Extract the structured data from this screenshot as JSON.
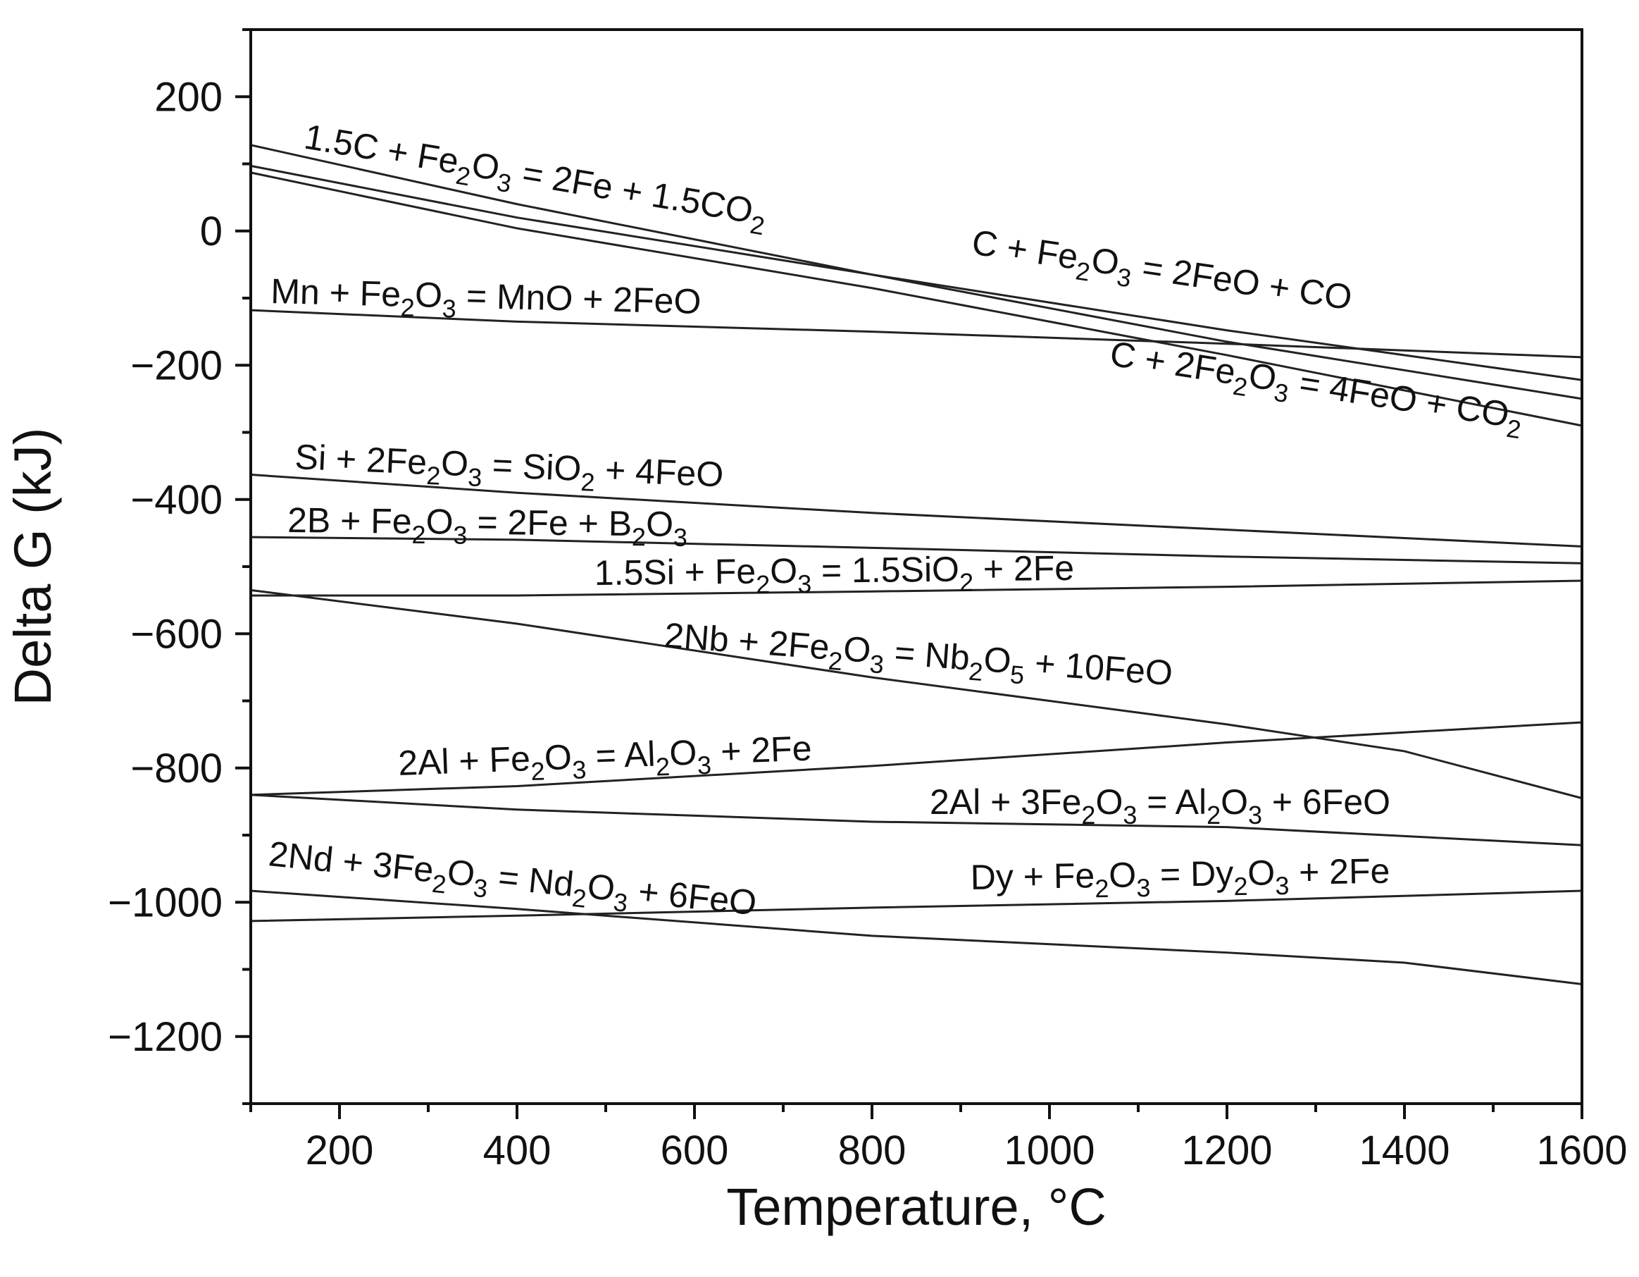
{
  "chart_data": {
    "type": "line",
    "xlabel": "Temperature, °C",
    "ylabel": "Delta G (kJ)",
    "xlim": [
      100,
      1600
    ],
    "ylim": [
      -1300,
      300
    ],
    "xticks": [
      200,
      400,
      600,
      800,
      1000,
      1200,
      1400,
      1600
    ],
    "yticks": [
      200,
      0,
      -200,
      -400,
      -600,
      -800,
      -1000,
      -1200
    ],
    "xtick_labels": [
      "200",
      "400",
      "600",
      "800",
      "1000",
      "1200",
      "1400",
      "1600"
    ],
    "ytick_labels": [
      "200",
      "0",
      "−200",
      "−400",
      "−600",
      "−800",
      "−1000",
      "−1200"
    ],
    "grid": false,
    "legend": "none (reactions labeled inline)",
    "line_color": "#222222",
    "series": [
      {
        "name": "1.5C + Fe2O3 = 2Fe + 1.5CO2",
        "x": [
          100,
          400,
          800,
          1200,
          1600
        ],
        "y": [
          128,
          40,
          -65,
          -165,
          -250
        ]
      },
      {
        "name": "C + Fe2O3 = 2FeO + CO",
        "x": [
          100,
          400,
          800,
          1200,
          1600
        ],
        "y": [
          97,
          20,
          -65,
          -148,
          -222
        ]
      },
      {
        "name": "C + 2Fe2O3 = 4FeO + CO2",
        "x": [
          100,
          400,
          800,
          1200,
          1600
        ],
        "y": [
          87,
          4,
          -85,
          -185,
          -290
        ]
      },
      {
        "name": "Mn + Fe2O3 = MnO + 2FeO",
        "x": [
          100,
          400,
          800,
          1200,
          1600
        ],
        "y": [
          -118,
          -135,
          -150,
          -168,
          -188
        ]
      },
      {
        "name": "Si + 2Fe2O3 = SiO2 + 4FeO",
        "x": [
          100,
          400,
          800,
          1200,
          1600
        ],
        "y": [
          -363,
          -390,
          -420,
          -445,
          -470
        ]
      },
      {
        "name": "2B + Fe2O3 = 2Fe + B2O3",
        "x": [
          100,
          400,
          800,
          1200,
          1600
        ],
        "y": [
          -456,
          -460,
          -472,
          -485,
          -495
        ]
      },
      {
        "name": "1.5Si + Fe2O3 = 1.5SiO2 + 2Fe",
        "x": [
          100,
          400,
          800,
          1200,
          1600
        ],
        "y": [
          -543,
          -543,
          -537,
          -530,
          -521
        ]
      },
      {
        "name": "2Nb + 2Fe2O3 = Nb2O5 + 10FeO",
        "x": [
          100,
          400,
          800,
          1200,
          1400,
          1600
        ],
        "y": [
          -535,
          -585,
          -665,
          -735,
          -775,
          -845
        ]
      },
      {
        "name": "2Al + Fe2O3 = Al2O3 + 2Fe",
        "x": [
          100,
          400,
          800,
          1200,
          1600
        ],
        "y": [
          -840,
          -827,
          -797,
          -762,
          -732
        ]
      },
      {
        "name": "2Al + 3Fe2O3 = Al2O3 + 6FeO",
        "x": [
          100,
          400,
          800,
          1200,
          1600
        ],
        "y": [
          -840,
          -862,
          -880,
          -888,
          -915
        ]
      },
      {
        "name": "2Nd + 3Fe2O3 = Nd2O3 + 6FeO",
        "x": [
          100,
          400,
          800,
          1200,
          1400,
          1600
        ],
        "y": [
          -983,
          -1010,
          -1050,
          -1075,
          -1090,
          -1122
        ]
      },
      {
        "name": "Dy + Fe2O3 = Dy2O3 + 2Fe",
        "x": [
          100,
          400,
          800,
          1200,
          1600
        ],
        "y": [
          -1028,
          -1020,
          -1008,
          -998,
          -983
        ]
      }
    ],
    "annotations": [
      {
        "text": "1.5C + Fe2O3 = 2Fe + 1.5CO2",
        "parts": [
          [
            "1.5C + Fe",
            ""
          ],
          [
            "2",
            "sub"
          ],
          [
            "O",
            ""
          ],
          [
            "3",
            "sub"
          ],
          [
            " = 2Fe + 1.5CO",
            ""
          ],
          [
            "2",
            "sub"
          ]
        ]
      },
      {
        "text": "C + Fe2O3 = 2FeO + CO",
        "parts": [
          [
            "C + Fe",
            ""
          ],
          [
            "2",
            "sub"
          ],
          [
            "O",
            ""
          ],
          [
            "3",
            "sub"
          ],
          [
            " = 2FeO + CO",
            ""
          ]
        ]
      },
      {
        "text": "Mn + Fe2O3 = MnO + 2FeO",
        "parts": [
          [
            "Mn + Fe",
            ""
          ],
          [
            "2",
            "sub"
          ],
          [
            "O",
            ""
          ],
          [
            "3",
            "sub"
          ],
          [
            " = MnO + 2FeO",
            ""
          ]
        ]
      },
      {
        "text": "C + 2Fe2O3 = 4FeO + CO2",
        "parts": [
          [
            "C + 2Fe",
            ""
          ],
          [
            "2",
            "sub"
          ],
          [
            "O",
            ""
          ],
          [
            "3",
            "sub"
          ],
          [
            " = 4FeO + CO",
            ""
          ],
          [
            "2",
            "sub"
          ]
        ]
      },
      {
        "text": "Si + 2Fe2O3 = SiO2 + 4FeO",
        "parts": [
          [
            "Si + 2Fe",
            ""
          ],
          [
            "2",
            "sub"
          ],
          [
            "O",
            ""
          ],
          [
            "3",
            "sub"
          ],
          [
            " = SiO",
            ""
          ],
          [
            "2",
            "sub"
          ],
          [
            " + 4FeO",
            ""
          ]
        ]
      },
      {
        "text": "2B + Fe2O3 = 2Fe + B2O3",
        "parts": [
          [
            "2B + Fe",
            ""
          ],
          [
            "2",
            "sub"
          ],
          [
            "O",
            ""
          ],
          [
            "3",
            "sub"
          ],
          [
            " = 2Fe + B",
            ""
          ],
          [
            "2",
            "sub"
          ],
          [
            "O",
            ""
          ],
          [
            "3",
            "sub"
          ]
        ]
      },
      {
        "text": "1.5Si + Fe2O3 = 1.5SiO2 + 2Fe",
        "parts": [
          [
            "1.5Si + Fe",
            ""
          ],
          [
            "2",
            "sub"
          ],
          [
            "O",
            ""
          ],
          [
            "3",
            "sub"
          ],
          [
            " = 1.5SiO",
            ""
          ],
          [
            "2",
            "sub"
          ],
          [
            " + 2Fe",
            ""
          ]
        ]
      },
      {
        "text": "2Nb + 2Fe2O3 = Nb2O5 + 10FeO",
        "parts": [
          [
            "2Nb + 2Fe",
            ""
          ],
          [
            "2",
            "sub"
          ],
          [
            "O",
            ""
          ],
          [
            "3",
            "sub"
          ],
          [
            " = Nb",
            ""
          ],
          [
            "2",
            "sub"
          ],
          [
            "O",
            ""
          ],
          [
            "5",
            "sub"
          ],
          [
            " + 10FeO",
            ""
          ]
        ]
      },
      {
        "text": "2Al + Fe2O3 = Al2O3 + 2Fe",
        "parts": [
          [
            "2Al + Fe",
            ""
          ],
          [
            "2",
            "sub"
          ],
          [
            "O",
            ""
          ],
          [
            "3",
            "sub"
          ],
          [
            " = Al",
            ""
          ],
          [
            "2",
            "sub"
          ],
          [
            "O",
            ""
          ],
          [
            "3",
            "sub"
          ],
          [
            " + 2Fe",
            ""
          ]
        ]
      },
      {
        "text": "2Al + 3Fe2O3 = Al2O3 + 6FeO",
        "parts": [
          [
            "2Al + 3Fe",
            ""
          ],
          [
            "2",
            "sub"
          ],
          [
            "O",
            ""
          ],
          [
            "3",
            "sub"
          ],
          [
            " = Al",
            ""
          ],
          [
            "2",
            "sub"
          ],
          [
            "O",
            ""
          ],
          [
            "3",
            "sub"
          ],
          [
            " + 6FeO",
            ""
          ]
        ]
      },
      {
        "text": "2Nd + 3Fe2O3 = Nd2O3 + 6FeO",
        "parts": [
          [
            "2Nd + 3Fe",
            ""
          ],
          [
            "2",
            "sub"
          ],
          [
            "O",
            ""
          ],
          [
            "3",
            "sub"
          ],
          [
            " = Nd",
            ""
          ],
          [
            "2",
            "sub"
          ],
          [
            "O",
            ""
          ],
          [
            "3",
            "sub"
          ],
          [
            " + 6FeO",
            ""
          ]
        ]
      },
      {
        "text": "Dy + Fe2O3 = Dy2O3 + 2Fe",
        "parts": [
          [
            "Dy + Fe",
            ""
          ],
          [
            "2",
            "sub"
          ],
          [
            "O",
            ""
          ],
          [
            "3",
            "sub"
          ],
          [
            " = Dy",
            ""
          ],
          [
            "2",
            "sub"
          ],
          [
            "O",
            ""
          ],
          [
            "3",
            "sub"
          ],
          [
            " + 2Fe",
            ""
          ]
        ]
      }
    ]
  }
}
